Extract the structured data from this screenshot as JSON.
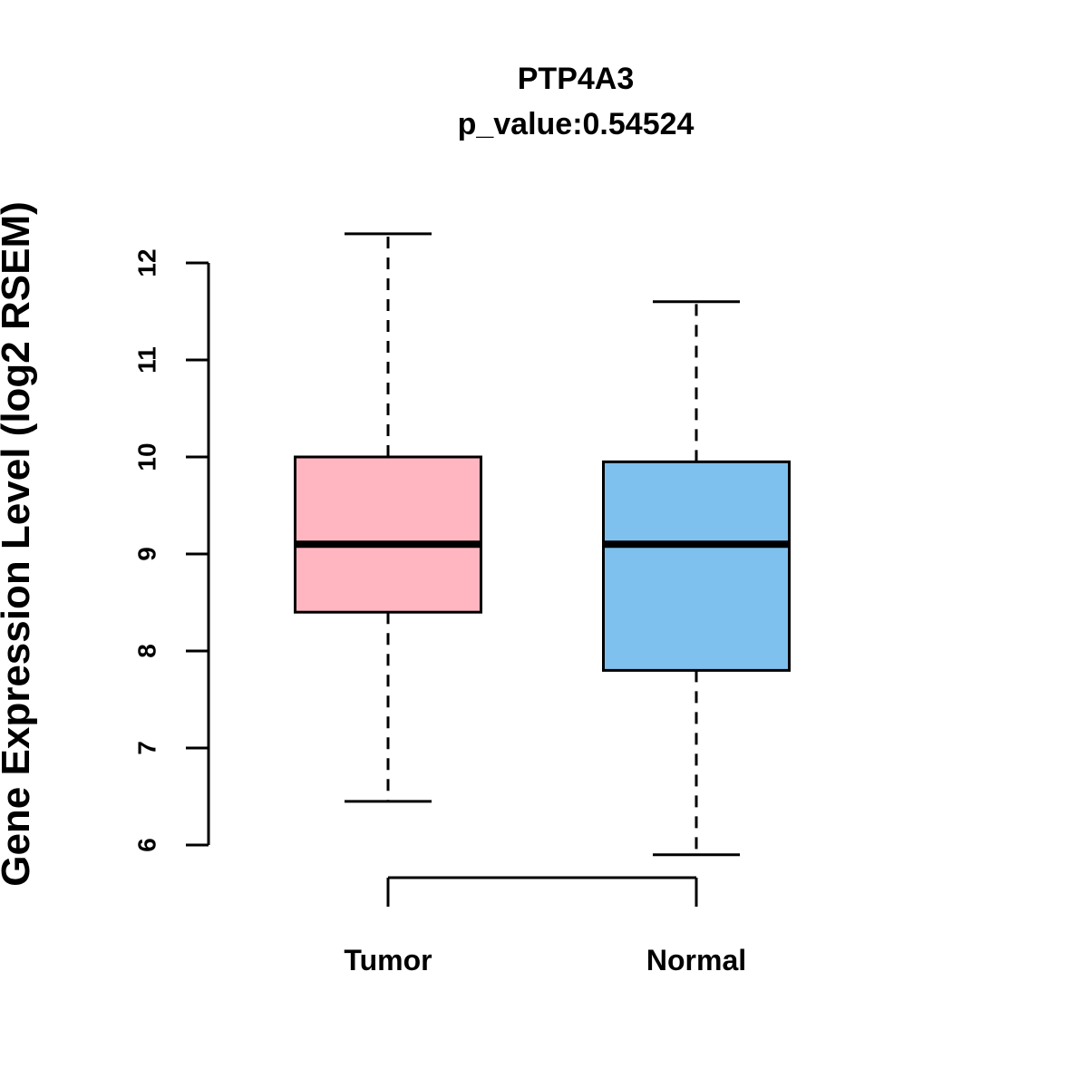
{
  "chart_data": {
    "type": "boxplot",
    "title": "PTP4A3",
    "subtitle": "p_value:0.54524",
    "ylabel": "Gene Expression Level (log2 RSEM)",
    "ylim": [
      6,
      12
    ],
    "yticks": [
      6,
      7,
      8,
      9,
      10,
      11,
      12
    ],
    "groups": [
      {
        "label": "Tumor",
        "color": "#FFB6C1",
        "whisker_low": 6.45,
        "q1": 8.4,
        "median": 9.1,
        "q3": 10.0,
        "whisker_high": 12.3
      },
      {
        "label": "Normal",
        "color": "#7EC0EE",
        "whisker_low": 5.9,
        "q1": 7.8,
        "median": 9.1,
        "q3": 9.95,
        "whisker_high": 11.6
      }
    ],
    "colors": {
      "axis": "#000000",
      "tumor_fill": "#FFB6C1",
      "normal_fill": "#7EC0EE"
    }
  }
}
